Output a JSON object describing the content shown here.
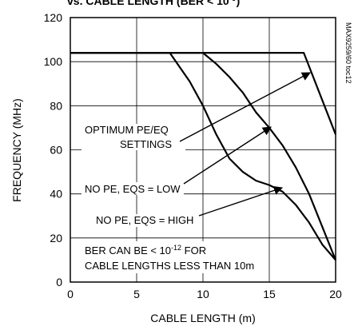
{
  "chart_data": {
    "type": "line",
    "title": "vs. CABLE LENGTH (BER < 10",
    "title_exponent": "-9",
    "title_suffix": ")",
    "xlabel": "CABLE LENGTH (m)",
    "ylabel": "FREQUENCY (MHz)",
    "xlim": [
      0,
      20
    ],
    "ylim": [
      0,
      120
    ],
    "x_ticks": [
      "0",
      "5",
      "10",
      "15",
      "20"
    ],
    "y_ticks": [
      "0",
      "20",
      "40",
      "60",
      "80",
      "100",
      "120"
    ],
    "grid": true,
    "series": [
      {
        "name": "OPTIMUM PE/EQ SETTINGS",
        "points": [
          [
            0,
            104
          ],
          [
            17.6,
            104
          ],
          [
            20,
            67
          ]
        ]
      },
      {
        "name": "NO PE, EQS = LOW",
        "points": [
          [
            0,
            104
          ],
          [
            10,
            104
          ],
          [
            11,
            99
          ],
          [
            12,
            93
          ],
          [
            13,
            86
          ],
          [
            14,
            77
          ],
          [
            15,
            70
          ],
          [
            16,
            62
          ],
          [
            17,
            52
          ],
          [
            18,
            40
          ],
          [
            19,
            25
          ],
          [
            20,
            10
          ]
        ]
      },
      {
        "name": "NO PE, EQS = HIGH",
        "points": [
          [
            0,
            104
          ],
          [
            7.5,
            104
          ],
          [
            9,
            91
          ],
          [
            10,
            80
          ],
          [
            11,
            67
          ],
          [
            12,
            56
          ],
          [
            13,
            50
          ],
          [
            14,
            46
          ],
          [
            15,
            44
          ],
          [
            16,
            41
          ],
          [
            17,
            35
          ],
          [
            18,
            27
          ],
          [
            19,
            17
          ],
          [
            20,
            10
          ]
        ]
      }
    ],
    "annotations": {
      "optimum_line1": "OPTIMUM PE/EQ",
      "optimum_line2": "SETTINGS",
      "low": "NO PE, EQS = LOW",
      "high": "NO PE, EQS = HIGH",
      "ber_line1_prefix": "BER CAN BE < 10",
      "ber_line1_exponent": "-12",
      "ber_line1_suffix": " FOR",
      "ber_line2": "CABLE LENGTHS LESS THAN 10m"
    },
    "side_label": "MAX9259/60 toc12"
  }
}
